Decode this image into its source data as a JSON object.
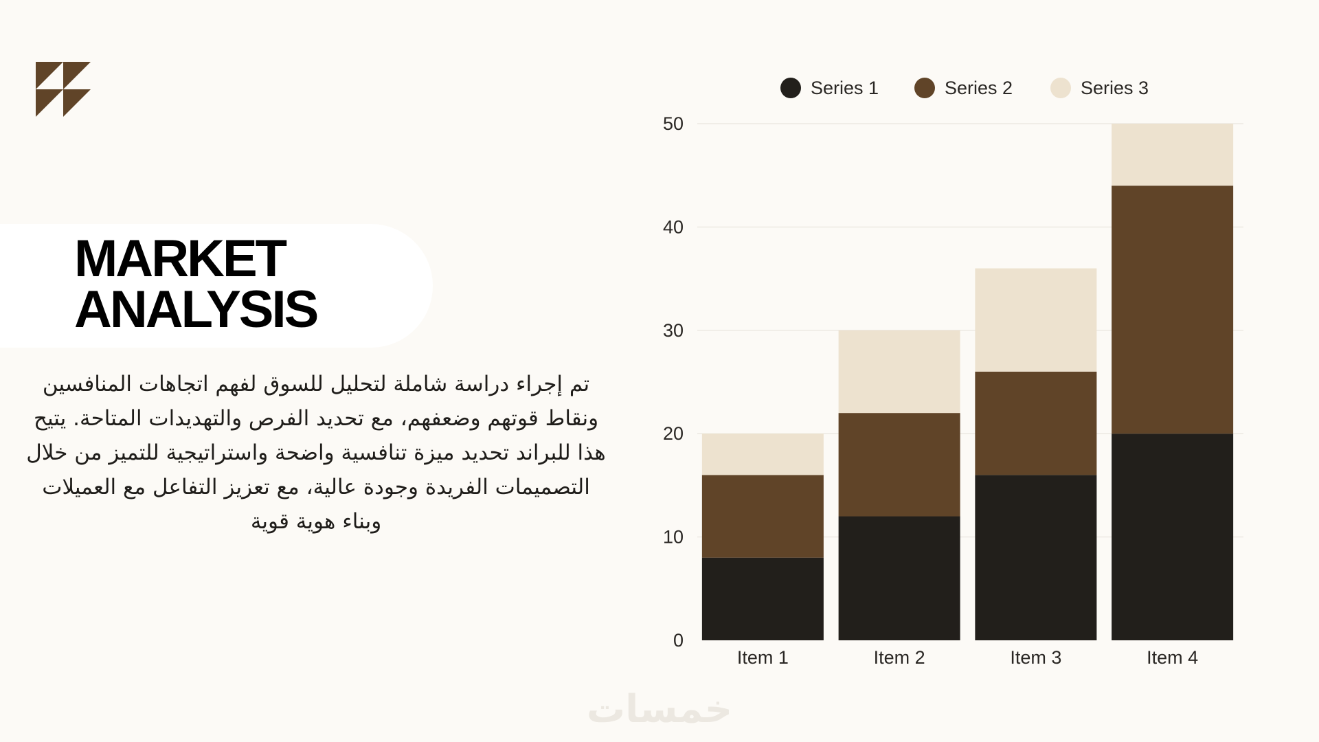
{
  "slide": {
    "title_lines": [
      "MARKET",
      "ANALYSIS"
    ],
    "body": "تم إجراء دراسة شاملة لتحليل للسوق لفهم اتجاهات المنافسين ونقاط قوتهم وضعفهم، مع تحديد الفرص والتهديدات المتاحة. يتيح هذا للبراند تحديد ميزة تنافسية واضحة واستراتيجية للتميز من خلال التصميمات الفريدة وجودة عالية، مع تعزيز التفاعل مع العميلات وبناء هوية قوية",
    "watermark": "خمسات",
    "logo_icon": "triangles-logo-icon"
  },
  "colors": {
    "background": "#fcfaf6",
    "series_1": "#221f1b",
    "series_2": "#604428",
    "series_3": "#ede2cf",
    "gridline": "#e4e0d8"
  },
  "chart_data": {
    "type": "bar",
    "stacked": true,
    "categories": [
      "Item 1",
      "Item 2",
      "Item 3",
      "Item 4"
    ],
    "series": [
      {
        "name": "Series 1",
        "values": [
          8,
          12,
          16,
          20
        ]
      },
      {
        "name": "Series 2",
        "values": [
          8,
          10,
          10,
          24
        ]
      },
      {
        "name": "Series 3",
        "values": [
          4,
          8,
          10,
          6
        ]
      }
    ],
    "title": "",
    "xlabel": "",
    "ylabel": "",
    "ylim": [
      0,
      50
    ],
    "yticks": [
      0,
      10,
      20,
      30,
      40,
      50
    ],
    "grid": true,
    "legend_position": "top"
  }
}
